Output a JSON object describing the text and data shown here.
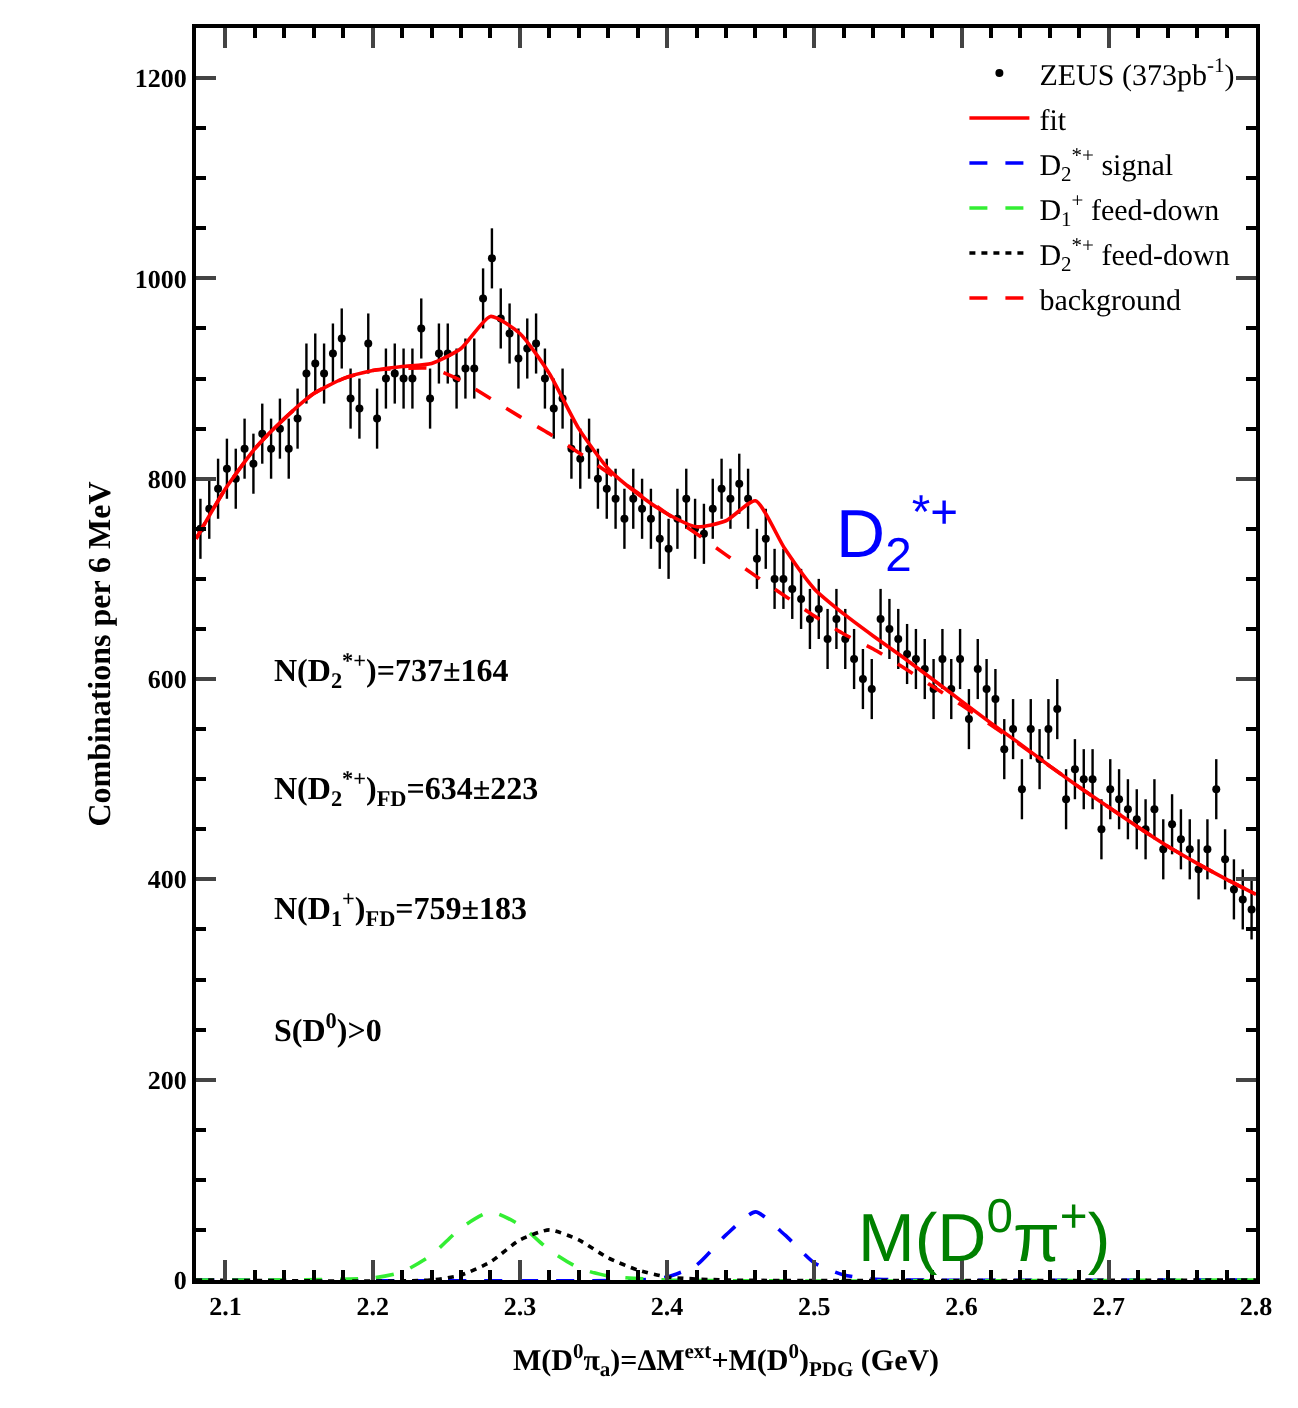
{
  "chart_data": {
    "type": "scatter",
    "xlabel": "M(D$^{0}$π$_{a}$)=ΔM$^{ext}$+M(D$^{0}$)$_{PDG}$ (GeV)",
    "ylabel": "Combinations per 6 MeV",
    "xlim": [
      2.08,
      2.8
    ],
    "xticks": [
      2.1,
      2.2,
      2.3,
      2.4,
      2.5,
      2.6,
      2.7,
      2.8
    ],
    "ylim": [
      0,
      1250
    ],
    "yticks": [
      0,
      200,
      400,
      600,
      800,
      1000,
      1200
    ],
    "legend": "top right",
    "annotations": [
      "N(D$_{2}$$^{*+}$)=737±164",
      "N(D$_{2}$$^{*+}$)$_{FD}$=634±223",
      "N(D$_{1}$$^{+}$)$_{FD}$=759±183",
      "S(D$^{0}$)>0",
      "D$_{2}$$^{*+}$",
      "M(D$^{0}$π$^{+}$)"
    ],
    "series": [
      {
        "name": "ZEUS (373pb$^{-1}$)",
        "color": "#000000",
        "marker": "circle",
        "x": [
          2.083,
          2.089,
          2.095,
          2.101,
          2.107,
          2.113,
          2.119,
          2.125,
          2.131,
          2.137,
          2.143,
          2.149,
          2.155,
          2.161,
          2.167,
          2.173,
          2.179,
          2.185,
          2.191,
          2.197,
          2.203,
          2.209,
          2.215,
          2.221,
          2.227,
          2.233,
          2.239,
          2.245,
          2.251,
          2.257,
          2.263,
          2.269,
          2.275,
          2.281,
          2.287,
          2.293,
          2.299,
          2.305,
          2.311,
          2.317,
          2.323,
          2.329,
          2.335,
          2.341,
          2.347,
          2.353,
          2.359,
          2.365,
          2.371,
          2.377,
          2.383,
          2.389,
          2.395,
          2.401,
          2.407,
          2.413,
          2.419,
          2.425,
          2.431,
          2.437,
          2.443,
          2.449,
          2.455,
          2.461,
          2.467,
          2.473,
          2.479,
          2.485,
          2.491,
          2.497,
          2.503,
          2.509,
          2.515,
          2.521,
          2.527,
          2.533,
          2.539,
          2.545,
          2.551,
          2.557,
          2.563,
          2.569,
          2.575,
          2.581,
          2.587,
          2.593,
          2.599,
          2.605,
          2.611,
          2.617,
          2.623,
          2.629,
          2.635,
          2.641,
          2.647,
          2.653,
          2.659,
          2.665,
          2.671,
          2.677,
          2.683,
          2.689,
          2.695,
          2.701,
          2.707,
          2.713,
          2.719,
          2.725,
          2.731,
          2.737,
          2.743,
          2.749,
          2.755,
          2.761,
          2.767,
          2.773,
          2.779,
          2.785,
          2.791,
          2.797
        ],
        "values": [
          750,
          770,
          790,
          810,
          800,
          830,
          815,
          845,
          830,
          850,
          830,
          860,
          905,
          915,
          905,
          925,
          940,
          880,
          870,
          935,
          860,
          900,
          905,
          900,
          900,
          950,
          880,
          925,
          925,
          900,
          910,
          910,
          980,
          1020,
          960,
          945,
          920,
          930,
          935,
          900,
          870,
          880,
          830,
          820,
          830,
          800,
          790,
          780,
          760,
          780,
          770,
          760,
          740,
          730,
          760,
          780,
          750,
          745,
          770,
          790,
          780,
          795,
          780,
          720,
          740,
          700,
          700,
          690,
          680,
          660,
          670,
          640,
          660,
          640,
          620,
          600,
          590,
          660,
          650,
          640,
          625,
          620,
          610,
          590,
          620,
          590,
          620,
          560,
          610,
          590,
          580,
          530,
          550,
          490,
          550,
          520,
          550,
          570,
          480,
          510,
          500,
          500,
          450,
          490,
          480,
          470,
          460,
          450,
          470,
          430,
          455,
          440,
          430,
          410,
          430,
          490,
          420,
          390,
          380,
          370
        ],
        "errors": [
          30,
          30,
          30,
          30,
          30,
          30,
          30,
          30,
          30,
          30,
          30,
          30,
          30,
          30,
          30,
          30,
          30,
          30,
          30,
          30,
          30,
          30,
          30,
          30,
          30,
          30,
          30,
          30,
          30,
          30,
          30,
          30,
          30,
          30,
          30,
          30,
          30,
          30,
          30,
          30,
          30,
          30,
          30,
          30,
          30,
          30,
          30,
          30,
          30,
          30,
          30,
          30,
          30,
          30,
          30,
          30,
          30,
          30,
          30,
          30,
          30,
          30,
          30,
          30,
          30,
          30,
          30,
          30,
          30,
          30,
          30,
          30,
          30,
          30,
          30,
          30,
          30,
          30,
          30,
          30,
          30,
          30,
          30,
          30,
          30,
          30,
          30,
          30,
          30,
          30,
          30,
          30,
          30,
          30,
          30,
          30,
          30,
          30,
          30,
          30,
          30,
          30,
          30,
          30,
          30,
          30,
          30,
          30,
          30,
          30,
          30,
          30,
          30,
          30,
          30,
          30,
          30,
          30,
          30,
          30
        ]
      },
      {
        "name": "fit",
        "type": "line",
        "color": "#ff0000",
        "line_style": "solid",
        "x": [
          2.08,
          2.1,
          2.12,
          2.14,
          2.16,
          2.18,
          2.2,
          2.22,
          2.24,
          2.26,
          2.28,
          2.3,
          2.32,
          2.34,
          2.36,
          2.38,
          2.4,
          2.42,
          2.44,
          2.46,
          2.48,
          2.5,
          2.52,
          2.54,
          2.56,
          2.58,
          2.6,
          2.62,
          2.64,
          2.66,
          2.68,
          2.7,
          2.72,
          2.74,
          2.76,
          2.78,
          2.8
        ],
        "values": [
          740,
          790,
          830,
          860,
          885,
          900,
          908,
          912,
          915,
          930,
          962,
          945,
          905,
          850,
          810,
          785,
          765,
          752,
          758,
          778,
          730,
          690,
          665,
          643,
          622,
          600,
          578,
          556,
          535,
          513,
          492,
          472,
          452,
          433,
          416,
          400,
          385
        ]
      },
      {
        "name": "D$_{2}$$^{*+}$ signal",
        "type": "line",
        "color": "#0000ff",
        "line_style": "dashed",
        "x": [
          2.08,
          2.38,
          2.4,
          2.42,
          2.44,
          2.46,
          2.48,
          2.5,
          2.52,
          2.54,
          2.56,
          2.8
        ],
        "values": [
          0,
          0,
          3,
          15,
          45,
          68,
          45,
          17,
          5,
          1,
          0,
          0
        ]
      },
      {
        "name": "D$_{1}$$^{+}$ feed-down",
        "type": "line",
        "color": "#33ee33",
        "line_style": "dashed",
        "x": [
          2.08,
          2.2,
          2.22,
          2.24,
          2.26,
          2.28,
          2.3,
          2.32,
          2.34,
          2.36,
          2.4,
          2.8
        ],
        "values": [
          0,
          2,
          8,
          25,
          52,
          68,
          55,
          30,
          12,
          4,
          0,
          0
        ]
      },
      {
        "name": "D$_{2}$$^{*+}$ feed-down",
        "type": "line",
        "color": "#000000",
        "line_style": "dotted",
        "x": [
          2.08,
          2.24,
          2.26,
          2.28,
          2.3,
          2.32,
          2.34,
          2.36,
          2.38,
          2.4,
          2.44,
          2.8
        ],
        "values": [
          0,
          0,
          5,
          18,
          40,
          50,
          40,
          22,
          10,
          3,
          0,
          0
        ]
      },
      {
        "name": "background",
        "type": "line",
        "color": "#ff0000",
        "line_style": "dashed",
        "x": [
          2.08,
          2.1,
          2.12,
          2.14,
          2.16,
          2.18,
          2.2,
          2.22,
          2.24,
          2.26,
          2.28,
          2.3,
          2.32,
          2.34,
          2.36,
          2.38,
          2.4,
          2.42,
          2.44,
          2.46,
          2.48,
          2.5,
          2.52,
          2.54,
          2.56,
          2.58,
          2.6,
          2.62,
          2.64,
          2.66,
          2.68,
          2.7,
          2.72,
          2.74,
          2.76,
          2.78,
          2.8
        ],
        "values": [
          740,
          790,
          830,
          860,
          885,
          900,
          908,
          910,
          910,
          898,
          880,
          862,
          845,
          826,
          806,
          786,
          765,
          745,
          724,
          703,
          683,
          663,
          645,
          630,
          612,
          593,
          574,
          554,
          534,
          513,
          492,
          472,
          452,
          433,
          416,
          400,
          385
        ]
      }
    ]
  }
}
